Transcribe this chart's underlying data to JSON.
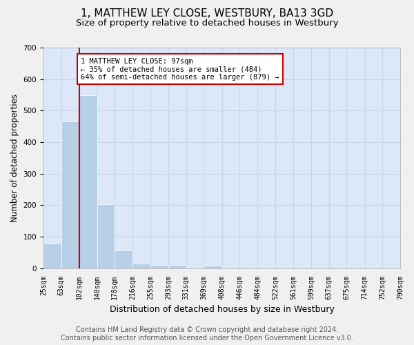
{
  "title": "1, MATTHEW LEY CLOSE, WESTBURY, BA13 3GD",
  "subtitle": "Size of property relative to detached houses in Westbury",
  "xlabel": "Distribution of detached houses by size in Westbury",
  "ylabel": "Number of detached properties",
  "bar_values": [
    78,
    465,
    550,
    204,
    57,
    15,
    10,
    10,
    0,
    8,
    0,
    0,
    0,
    0,
    0,
    0,
    0,
    0,
    0,
    0
  ],
  "bin_edges": [
    25,
    63,
    102,
    140,
    178,
    216,
    255,
    293,
    331,
    369,
    408,
    446,
    484,
    522,
    561,
    599,
    637,
    675,
    714,
    752,
    790
  ],
  "tick_labels": [
    "25sqm",
    "63sqm",
    "102sqm",
    "140sqm",
    "178sqm",
    "216sqm",
    "255sqm",
    "293sqm",
    "331sqm",
    "369sqm",
    "408sqm",
    "446sqm",
    "484sqm",
    "522sqm",
    "561sqm",
    "599sqm",
    "637sqm",
    "675sqm",
    "714sqm",
    "752sqm",
    "790sqm"
  ],
  "bar_color": "#b8cfe8",
  "bar_edge_color": "#ffffff",
  "vline_x": 102,
  "vline_color": "#cc0000",
  "annotation_text": "1 MATTHEW LEY CLOSE: 97sqm\n← 35% of detached houses are smaller (484)\n64% of semi-detached houses are larger (879) →",
  "annotation_box_color": "#ffffff",
  "annotation_border_color": "#cc0000",
  "ylim": [
    0,
    700
  ],
  "yticks": [
    0,
    100,
    200,
    300,
    400,
    500,
    600,
    700
  ],
  "footer_line1": "Contains HM Land Registry data © Crown copyright and database right 2024.",
  "footer_line2": "Contains public sector information licensed under the Open Government Licence v3.0.",
  "grid_color": "#c8d4e8",
  "background_color": "#dce8f8",
  "fig_background": "#f0f0f0",
  "title_fontsize": 11,
  "subtitle_fontsize": 9.5,
  "xlabel_fontsize": 9,
  "ylabel_fontsize": 8.5,
  "tick_fontsize": 7,
  "footer_fontsize": 7,
  "annotation_fontsize": 7.5
}
